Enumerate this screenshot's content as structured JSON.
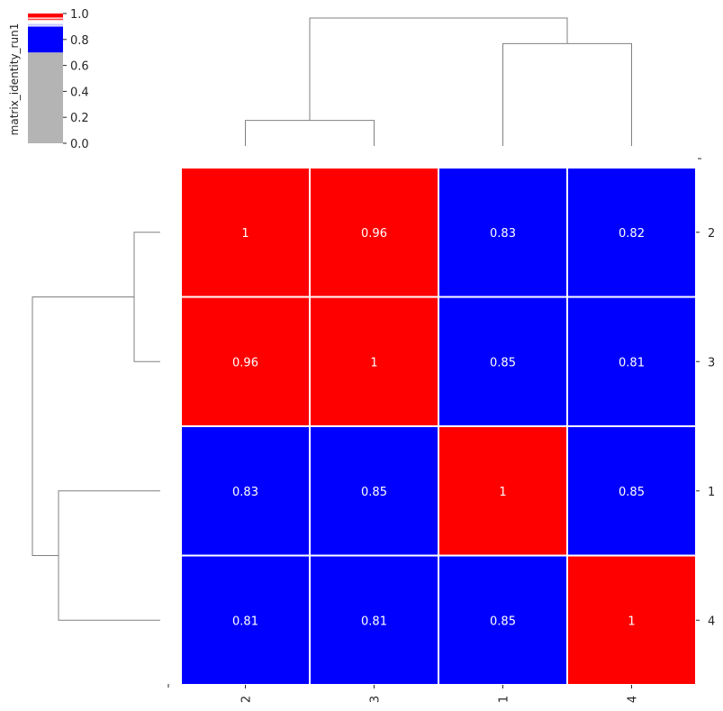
{
  "chart_data": {
    "type": "heatmap",
    "title": "",
    "row_labels": [
      "2",
      "3",
      "1",
      "4"
    ],
    "col_labels": [
      "2",
      "3",
      "1",
      "4"
    ],
    "values": [
      [
        1,
        0.96,
        0.83,
        0.82
      ],
      [
        0.96,
        1,
        0.85,
        0.81
      ],
      [
        0.83,
        0.85,
        1,
        0.85
      ],
      [
        0.81,
        0.81,
        0.85,
        1
      ]
    ],
    "cell_text": [
      [
        "1",
        "0.96",
        "0.83",
        "0.82"
      ],
      [
        "0.96",
        "1",
        "0.85",
        "0.81"
      ],
      [
        "0.83",
        "0.85",
        "1",
        "0.85"
      ],
      [
        "0.81",
        "0.81",
        "0.85",
        "1"
      ]
    ],
    "colorbar": {
      "label": "matrix_identity_run1",
      "ticks": [
        "0.0",
        "0.2",
        "0.4",
        "0.6",
        "0.8",
        "1.0"
      ],
      "range": [
        0,
        1
      ],
      "colormap": [
        {
          "from": 0.0,
          "to": 0.7,
          "color": "#b4b4b4"
        },
        {
          "from": 0.7,
          "to": 0.9,
          "color": "#0000ff"
        },
        {
          "from": 0.9,
          "to": 0.95,
          "color": "#ffffff"
        },
        {
          "from": 0.95,
          "to": 1.0,
          "color": "#ff0000"
        }
      ]
    },
    "dendrogram": {
      "row_merges": [
        {
          "left": "2",
          "right": "3",
          "height": 0.4
        },
        {
          "left": "1",
          "right": "4",
          "height": 0.8
        },
        {
          "left": "2-3",
          "right": "1-4",
          "height": 1.0
        }
      ],
      "col_merges": [
        {
          "left": "2",
          "right": "3",
          "height": 0.2
        },
        {
          "left": "1",
          "right": "4",
          "height": 0.8
        },
        {
          "left": "2-3",
          "right": "1-4",
          "height": 1.0
        }
      ]
    },
    "colors": {
      "high": "#ff0000",
      "mid_high": "#ffc8c8",
      "mid": "#0000ff",
      "text_light": "#ffffff",
      "text_dark": "#262626",
      "dendrogram_line": "#808080",
      "grid_line": "#ffffff"
    },
    "grid": false,
    "legend": "top-left"
  }
}
